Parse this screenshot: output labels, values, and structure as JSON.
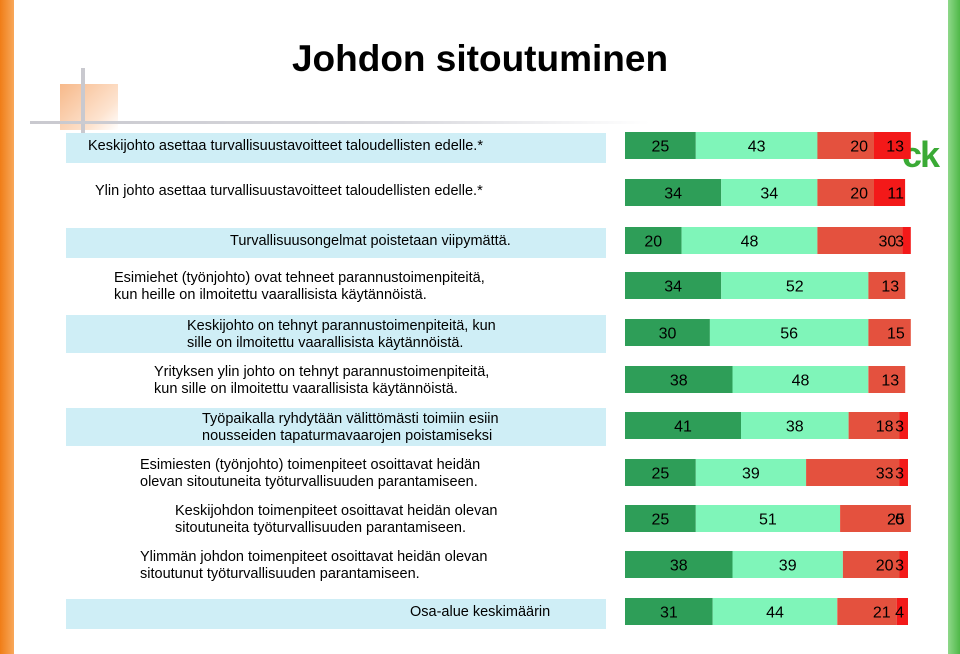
{
  "title": "Johdon sitoutuminen",
  "logo_text": "ck",
  "colors": {
    "dark_green": "#2e9e58",
    "light_green": "#7ff5b9",
    "red": "#e4513e",
    "bright_red": "#f31919",
    "label_box": "#cfeef6",
    "title_text": "#000000",
    "logo": "#3aaa35",
    "left_strip": "#f07d17",
    "right_strip": "#4fb848"
  },
  "chart_data": {
    "type": "bar",
    "orientation": "horizontal",
    "stacked": true,
    "legend": "none",
    "grid": false,
    "categories": [
      [
        "Keskijohto asettaa turvallisuustavoitteet taloudellisten edelle.*"
      ],
      [
        "Ylin johto asettaa turvallisuustavoitteet taloudellisten edelle.*"
      ],
      [
        "Turvallisuusongelmat poistetaan viipymättä."
      ],
      [
        "Esimiehet (työnjohto) ovat tehneet parannustoimenpiteitä,",
        "kun heille on ilmoitettu vaarallisista käytännöistä."
      ],
      [
        "Keskijohto on tehnyt parannustoimenpiteitä, kun",
        "sille on ilmoitettu vaarallisista käytännöistä."
      ],
      [
        "Yrityksen ylin johto on tehnyt parannustoimenpiteitä,",
        "kun sille on ilmoitettu vaarallisista käytännöistä."
      ],
      [
        "Työpaikalla ryhdytään välittömästi toimiin esiin",
        "nousseiden tapaturmavaarojen poistamiseksi"
      ],
      [
        "Esimiesten (työnjohto) toimenpiteet osoittavat heidän",
        "olevan sitoutuneita työturvallisuuden parantamiseen."
      ],
      [
        "Keskijohdon toimenpiteet osoittavat heidän olevan",
        "sitoutuneita työturvallisuuden parantamiseen."
      ],
      [
        "Ylimmän johdon toimenpiteet osoittavat heidän olevan",
        "sitoutunut työturvallisuuden parantamiseen."
      ],
      [
        "Osa-alue keskimäärin"
      ]
    ],
    "series": [
      {
        "values": [
          25,
          34,
          20,
          34,
          30,
          38,
          41,
          25,
          25,
          38,
          31
        ]
      },
      {
        "values": [
          43,
          34,
          48,
          52,
          56,
          48,
          38,
          39,
          51,
          39,
          44
        ]
      },
      {
        "values": [
          20,
          20,
          30,
          13,
          15,
          13,
          18,
          33,
          25,
          20,
          21
        ]
      },
      {
        "values": [
          13,
          11,
          3,
          null,
          null,
          null,
          3,
          3,
          0,
          3,
          4
        ]
      }
    ],
    "xlim": [
      0,
      100
    ]
  }
}
